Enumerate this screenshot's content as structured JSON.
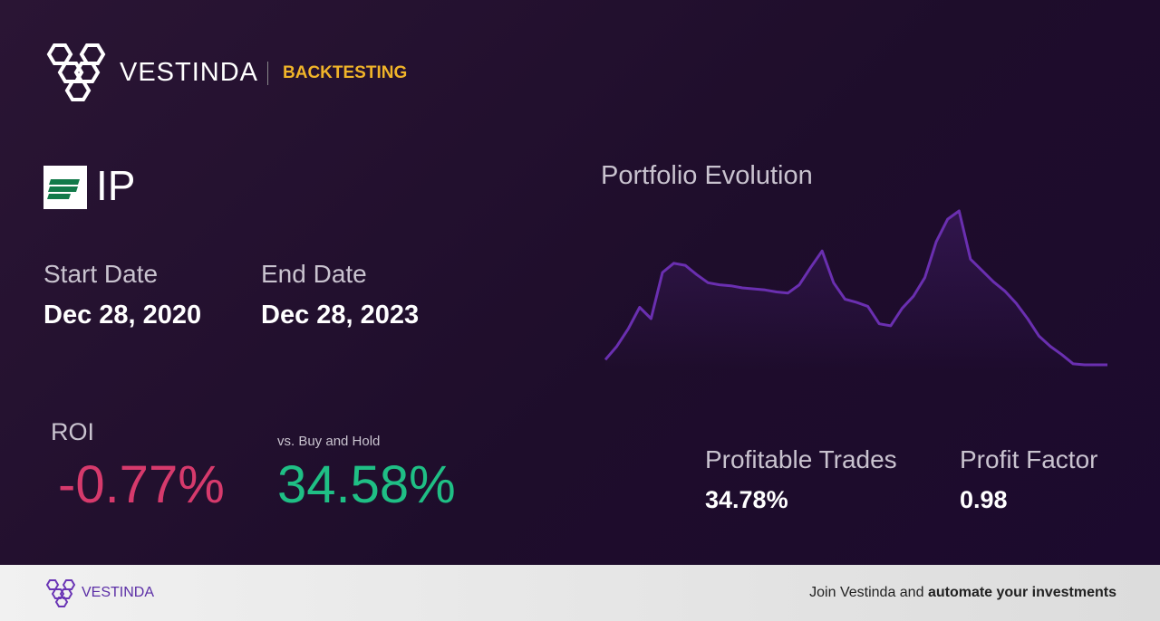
{
  "header": {
    "brand": "VESTINDA",
    "section": "BACKTESTING"
  },
  "ticker": "IP",
  "dates": {
    "start_label": "Start Date",
    "start": "Dec 28, 2020",
    "end_label": "End Date",
    "end": "Dec 28, 2023"
  },
  "metrics": {
    "roi_label": "ROI",
    "roi": "-0.77%",
    "buy_hold_label": "vs. Buy and Hold",
    "buy_hold": "34.58%",
    "profitable_label": "Profitable Trades",
    "profitable": "34.78%",
    "profit_factor_label": "Profit Factor",
    "profit_factor": "0.98"
  },
  "chart": {
    "title": "Portfolio Evolution",
    "color": "#6a2fb0",
    "values": [
      15,
      28,
      45,
      66,
      55,
      100,
      109,
      107,
      98,
      90,
      88,
      87,
      85,
      84,
      83,
      81,
      80,
      88,
      105,
      121,
      90,
      74,
      71,
      67,
      50,
      48,
      65,
      77,
      95,
      130,
      152,
      160,
      113,
      102,
      91,
      82,
      70,
      55,
      38,
      28,
      20,
      11,
      10,
      10,
      10
    ]
  },
  "footer": {
    "brand": "VESTINDA",
    "cta": "Join Vestinda and",
    "cta_bold": "automate your investments"
  }
}
